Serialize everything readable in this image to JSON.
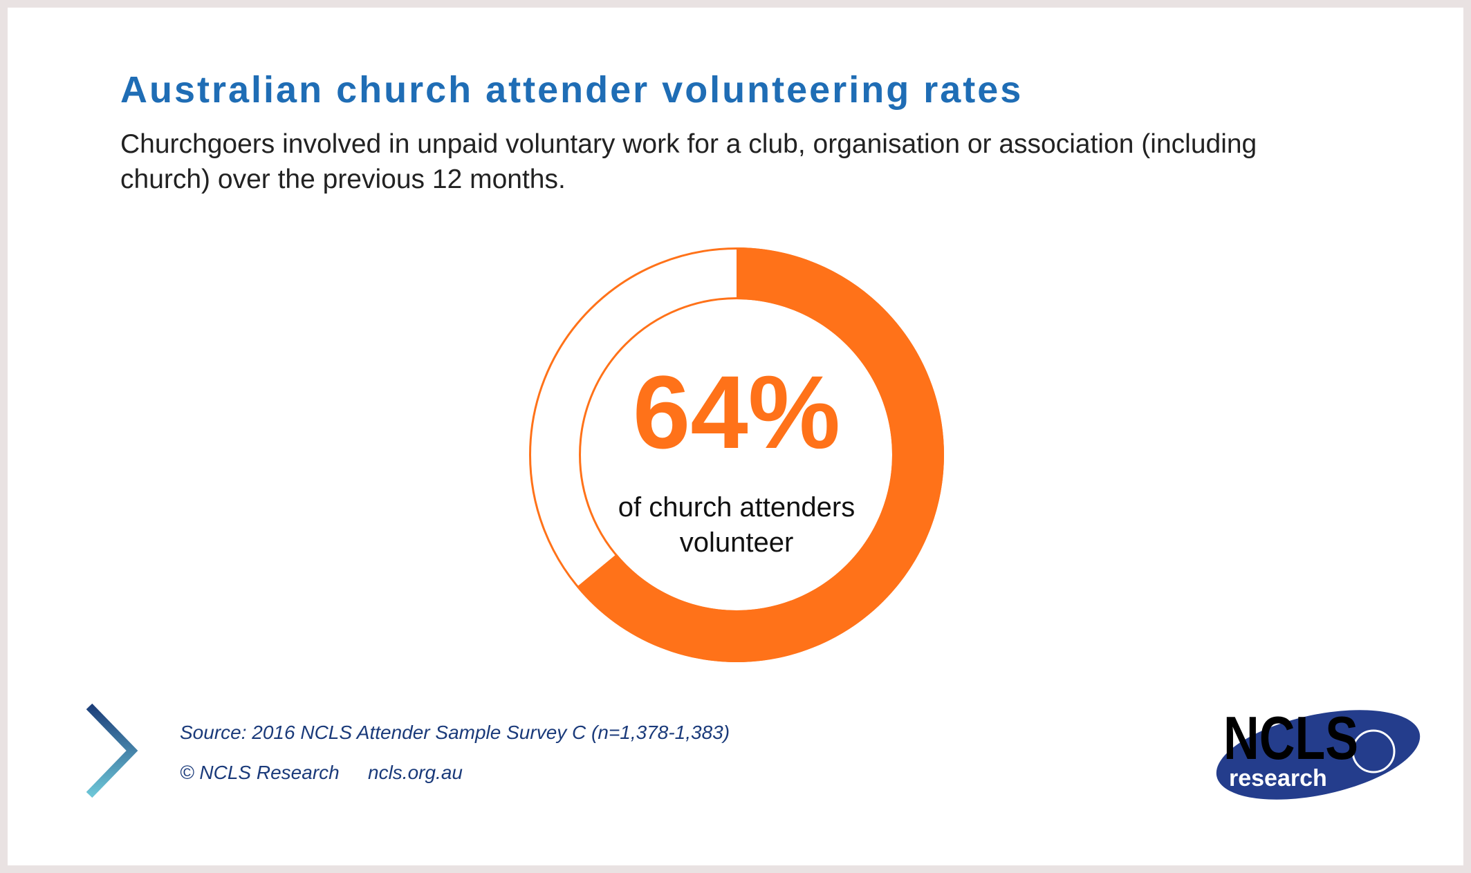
{
  "chart_data": {
    "type": "donut",
    "title": "Australian church attender volunteering rates",
    "subtitle": "Churchgoers involved in unpaid voluntary work for a club, organisation or association (including church) over the previous 12 months.",
    "values": [
      64
    ],
    "value_labels": [
      "64%"
    ],
    "color": "#ff7219",
    "center_text": "of church attenders volunteer",
    "source": "Source: 2016 NCLS Attender Sample Survey C (n=1,378-1,383)",
    "credit": "© NCLS Research",
    "website": "ncls.org.au"
  },
  "logo": {
    "name": "NCLS",
    "tagline": "research"
  }
}
